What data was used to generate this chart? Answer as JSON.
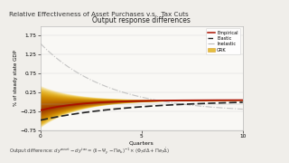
{
  "title_main": "Relative Effectiveness of Asset Purchases v.s.  Tax Cuts",
  "chart_title": "Output response differences",
  "xlabel": "Quarters",
  "ylabel": "% of steady state GDP",
  "xlim": [
    0,
    10
  ],
  "ylim": [
    -0.75,
    2.0
  ],
  "yticks": [
    -0.75,
    -0.25,
    0.25,
    0.75,
    1.25,
    1.75
  ],
  "xticks": [
    0,
    5,
    10
  ],
  "slide_bg": "#f0eeea",
  "chart_bg": "#f9f8f5",
  "legend_labels": [
    "Empirical",
    "Elastic",
    "Inelastic",
    "GRK"
  ],
  "empirical_color": "#aa1100",
  "elastic_color": "#222222",
  "inelastic_color": "#bbbbbb",
  "formula_text": "Output difference: $dy^{asset} - dy^{tax} = (\\mathbf{I} - \\Psi_y - \\Pi e_b)^{-1} \\times (\\Phi_T d\\Delta + \\Pi e_T\\dot{\\Delta})$"
}
